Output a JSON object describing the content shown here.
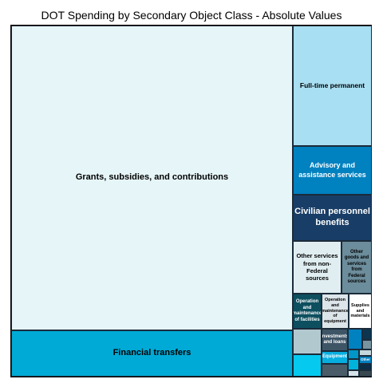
{
  "chart_data": {
    "type": "treemap",
    "title": "DOT Spending by Secondary Object Class - Absolute Values",
    "tiles": [
      {
        "label": "Grants, subsidies, and contributions",
        "value": 72.2,
        "color": "#e6f5f8",
        "text_color": "#000000"
      },
      {
        "label": "Financial transfers",
        "value": 10.6,
        "color": "#00aad6",
        "text_color": "#000000"
      },
      {
        "label": "Full-time permanent",
        "value": 4.5,
        "color": "#a9dff2",
        "text_color": "#000000"
      },
      {
        "label": "Advisory and assistance services",
        "value": 2.2,
        "color": "#0081c0",
        "text_color": "#ffffff"
      },
      {
        "label": "Civilian personnel benefits",
        "value": 1.9,
        "color": "#183d66",
        "text_color": "#ffffff"
      },
      {
        "label": "Other services from non-Federal sources",
        "value": 1.5,
        "color": "#e0eef2",
        "text_color": "#000000"
      },
      {
        "label": "Other goods and services from Federal sources",
        "value": 0.95,
        "color": "#6c8d9b",
        "text_color": "#000000"
      },
      {
        "label": "Operation and maintenance of facilities",
        "value": 0.62,
        "color": "#0d4f5f",
        "text_color": "#ffffff"
      },
      {
        "label": "Operation and maintenance of equipment",
        "value": 0.52,
        "color": "#dce5e9",
        "text_color": "#000000"
      },
      {
        "label": "Supplies and materials",
        "value": 0.45,
        "color": "#ffffff",
        "text_color": "#000000"
      },
      {
        "label": "",
        "value": 0.4,
        "color": "#b2c8cf",
        "text_color": "#000000"
      },
      {
        "label": "Investments and loans",
        "value": 0.33,
        "color": "#3e5566",
        "text_color": "#ffffff"
      },
      {
        "label": "Equipment",
        "value": 0.3,
        "color": "#06aee0",
        "text_color": "#ffffff"
      },
      {
        "label": "",
        "value": 0.3,
        "color": "#06c9ef",
        "text_color": "#000000"
      },
      {
        "label": "",
        "value": 0.2,
        "color": "#4a5c68",
        "text_color": "#000000"
      },
      {
        "label": "",
        "value": 0.13,
        "color": "#0081c0",
        "text_color": "#000000"
      },
      {
        "label": "",
        "value": 0.1,
        "color": "#0e3550",
        "text_color": "#000000"
      },
      {
        "label": "",
        "value": 0.1,
        "color": "#7894a0",
        "text_color": "#000000"
      },
      {
        "label": "",
        "value": 0.08,
        "color": "#0096c7",
        "text_color": "#000000"
      },
      {
        "label": "",
        "value": 0.07,
        "color": "#c4d7dd",
        "text_color": "#000000"
      },
      {
        "label": "",
        "value": 0.07,
        "color": "#00b3dc",
        "text_color": "#000000"
      },
      {
        "label": "Other",
        "value": 0.06,
        "color": "#0081c0",
        "text_color": "#ffffff"
      },
      {
        "label": "",
        "value": 0.05,
        "color": "#0b2d45",
        "text_color": "#000000"
      },
      {
        "label": "",
        "value": 0.03,
        "color": "#d5e3e8",
        "text_color": "#000000"
      },
      {
        "label": "",
        "value": 0.03,
        "color": "#36474f",
        "text_color": "#000000"
      }
    ]
  }
}
